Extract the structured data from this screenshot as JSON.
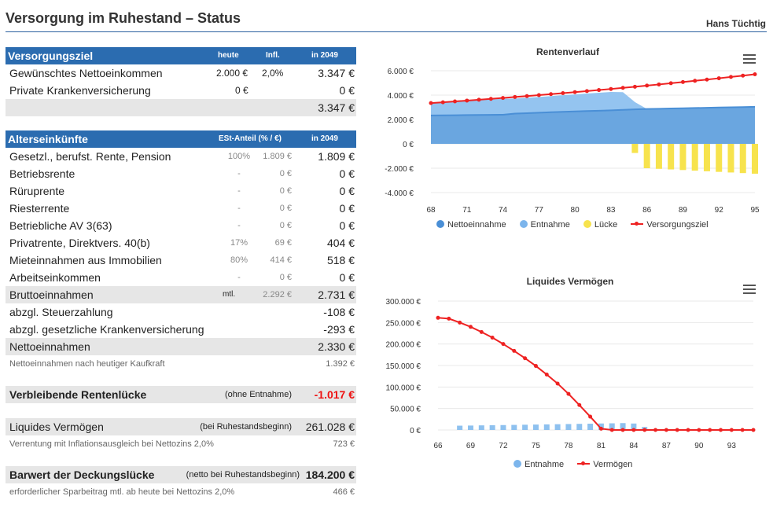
{
  "header": {
    "title": "Versorgung im Ruhestand  –  Status",
    "user": "Hans Tüchtig"
  },
  "versorgungsziel": {
    "title": "Versorgungsziel",
    "col_heute": "heute",
    "col_infl": "Infl.",
    "col_year": "in 2049",
    "rows": [
      {
        "label": "Gewünschtes Nettoeinkommen",
        "heute": "2.000 €",
        "infl": "2,0%",
        "value": "3.347 €"
      },
      {
        "label": "Private Krankenversicherung",
        "heute": "0 €",
        "infl": "",
        "value": "0 €"
      }
    ],
    "total": "3.347 €"
  },
  "alterseinkuenfte": {
    "title": "Alterseinkünfte",
    "col_est": "ESt-Anteil (% / €)",
    "col_year": "in 2049",
    "rows": [
      {
        "label": "Gesetzl., berufst. Rente, Pension",
        "pct": "100%",
        "est": "1.809 €",
        "value": "1.809 €"
      },
      {
        "label": "Betriebsrente",
        "pct": "-",
        "est": "0 €",
        "value": "0 €"
      },
      {
        "label": "Rüruprente",
        "pct": "-",
        "est": "0 €",
        "value": "0 €"
      },
      {
        "label": "Riesterrente",
        "pct": "-",
        "est": "0 €",
        "value": "0 €"
      },
      {
        "label": "Betriebliche AV 3(63)",
        "pct": "-",
        "est": "0 €",
        "value": "0 €"
      },
      {
        "label": "Privatrente, Direktvers. 40(b)",
        "pct": "17%",
        "est": "69 €",
        "value": "404 €"
      },
      {
        "label": "Mieteinnahmen aus Immobilien",
        "pct": "80%",
        "est": "414 €",
        "value": "518 €"
      },
      {
        "label": "Arbeitseinkommen",
        "pct": "-",
        "est": "0 €",
        "value": "0 €"
      }
    ],
    "brutto": {
      "label": "Bruttoeinnahmen",
      "mtl": "mtl.",
      "est": "2.292 €",
      "value": "2.731 €"
    },
    "steuer": {
      "label": "abzgl. Steuerzahlung",
      "value": "-108 €"
    },
    "kv": {
      "label": "abzgl. gesetzliche Krankenversicherung",
      "value": "-293 €"
    },
    "netto": {
      "label": "Nettoeinnahmen",
      "value": "2.330 €"
    },
    "kaufkraft": {
      "label": "Nettoeinnahmen nach heutiger Kaufkraft",
      "value": "1.392 €"
    }
  },
  "luecke": {
    "label": "Verbleibende Rentenlücke",
    "note": "(ohne Entnahme)",
    "value": "-1.017 €"
  },
  "vermoegen": {
    "label": "Liquides Vermögen",
    "note": "(bei Ruhestandsbeginn)",
    "value": "261.028 €",
    "sub_label": "Verrentung mit Inflationsausgleich bei Nettozins 2,0%",
    "sub_value": "723 €"
  },
  "barwert": {
    "label": "Barwert der Deckungslücke",
    "note": "(netto bei Ruhestandsbeginn)",
    "value": "184.200 €",
    "sub_label": "erforderlicher Sparbeitrag mtl. ab heute bei Nettozins 2,0%",
    "sub_value": "466 €"
  },
  "chart_data": [
    {
      "type": "area",
      "title": "Rentenverlauf",
      "x_ticks": [
        "68",
        "71",
        "74",
        "77",
        "80",
        "83",
        "86",
        "89",
        "92",
        "95"
      ],
      "y_ticks": [
        "6.000 €",
        "4.000 €",
        "2.000 €",
        "0 €",
        "-2.000 €",
        "-4.000 €"
      ],
      "ylim": [
        -4000,
        6000
      ],
      "x": [
        68,
        69,
        70,
        71,
        72,
        73,
        74,
        75,
        76,
        77,
        78,
        79,
        80,
        81,
        82,
        83,
        84,
        85,
        86,
        87,
        88,
        89,
        90,
        91,
        92,
        93,
        94,
        95
      ],
      "series": [
        {
          "name": "Nettoeinnahme",
          "color": "#5b9bd5",
          "values": [
            2330,
            2340,
            2350,
            2360,
            2370,
            2380,
            2390,
            2480,
            2520,
            2560,
            2600,
            2630,
            2660,
            2690,
            2720,
            2750,
            2790,
            2830,
            2860,
            2880,
            2900,
            2920,
            2940,
            2960,
            2980,
            3000,
            3020,
            3040
          ]
        },
        {
          "name": "Entnahme",
          "color": "#7cb5ec",
          "values": [
            1017,
            1060,
            1110,
            1160,
            1210,
            1260,
            1310,
            1240,
            1260,
            1290,
            1320,
            1360,
            1400,
            1440,
            1470,
            1510,
            1450,
            600,
            0,
            0,
            0,
            0,
            0,
            0,
            0,
            0,
            0,
            0
          ]
        },
        {
          "name": "Lücke",
          "color": "#f7e34d",
          "values": [
            0,
            0,
            0,
            0,
            0,
            0,
            0,
            0,
            0,
            0,
            0,
            0,
            0,
            0,
            0,
            0,
            0,
            -750,
            -2000,
            -2050,
            -2100,
            -2150,
            -2200,
            -2250,
            -2300,
            -2350,
            -2400,
            -2450
          ]
        },
        {
          "name": "Versorgungsziel",
          "color": "#e22",
          "values": [
            3347,
            3414,
            3482,
            3552,
            3623,
            3695,
            3769,
            3845,
            3921,
            4000,
            4080,
            4161,
            4245,
            4329,
            4416,
            4504,
            4594,
            4686,
            4780,
            4875,
            4973,
            5072,
            5174,
            5277,
            5383,
            5490,
            5600,
            5712
          ]
        }
      ]
    },
    {
      "type": "line",
      "title": "Liquides Vermögen",
      "x_ticks": [
        "66",
        "69",
        "72",
        "75",
        "78",
        "81",
        "84",
        "87",
        "90",
        "93"
      ],
      "y_ticks": [
        "300.000 €",
        "250.000 €",
        "200.000 €",
        "150.000 €",
        "100.000 €",
        "50.000 €",
        "0 €"
      ],
      "ylim": [
        0,
        300000
      ],
      "x": [
        66,
        67,
        68,
        69,
        70,
        71,
        72,
        73,
        74,
        75,
        76,
        77,
        78,
        79,
        80,
        81,
        82,
        83,
        84,
        85,
        86,
        87,
        88,
        89,
        90,
        91,
        92,
        93,
        94,
        95
      ],
      "series": [
        {
          "name": "Entnahme",
          "color": "#7cb5ec",
          "values": [
            0,
            0,
            10000,
            10300,
            10700,
            11100,
            11400,
            11800,
            12200,
            12600,
            13000,
            13400,
            13800,
            14200,
            14600,
            15100,
            15500,
            16000,
            15000,
            7000,
            0,
            0,
            0,
            0,
            0,
            0,
            0,
            0,
            0,
            0
          ]
        },
        {
          "name": "Vermögen",
          "color": "#e22",
          "values": [
            261028,
            259000,
            250000,
            240000,
            228000,
            215000,
            200000,
            184000,
            167000,
            149000,
            129000,
            108000,
            84000,
            58000,
            31000,
            3000,
            0,
            0,
            0,
            0,
            0,
            0,
            0,
            0,
            0,
            0,
            0,
            0,
            0,
            0
          ]
        }
      ]
    }
  ]
}
